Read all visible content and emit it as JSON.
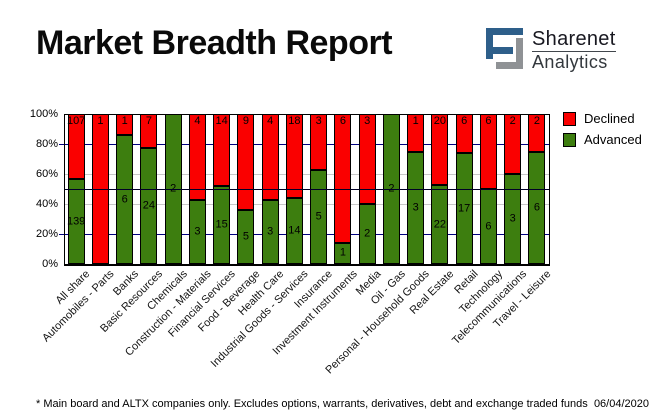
{
  "header": {
    "title": "Market Breadth Report"
  },
  "logo": {
    "name": "Sharenet",
    "sub": "Analytics",
    "blue": "#2e5f8a",
    "gray": "#8f9295"
  },
  "footer": {
    "note": "* Main board and ALTX companies only. Excludes options, warrants, derivatives, debt and exchange traded funds",
    "date": "06/04/2020"
  },
  "chart_data": {
    "type": "bar",
    "stacked": true,
    "normalized": "each bar scaled to 100%; labels show raw counts",
    "title": "Market Breadth Report",
    "xlabel": "",
    "ylabel": "",
    "ylim": [
      0,
      100
    ],
    "y_ticks": [
      {
        "pct": 100,
        "label": "100%"
      },
      {
        "pct": 80,
        "label": "80%"
      },
      {
        "pct": 60,
        "label": "60%"
      },
      {
        "pct": 40,
        "label": "40%"
      },
      {
        "pct": 20,
        "label": "20%"
      },
      {
        "pct": 0,
        "label": "0%"
      }
    ],
    "gridlines": [
      {
        "pct": 80,
        "color": "#000080"
      },
      {
        "pct": 60,
        "color": "#c8c8c8"
      },
      {
        "pct": 40,
        "color": "#c8c8c8"
      },
      {
        "pct": 20,
        "color": "#000080"
      }
    ],
    "reference_line": {
      "pct": 50,
      "color": "#000026"
    },
    "legend_position": "top-right",
    "categories": [
      "All share",
      "Automobiles - Parts",
      "Banks",
      "Basic Resources",
      "Chemicals",
      "Construction - Materials",
      "Financial Services",
      "Food - Beverage",
      "Health Care",
      "Industrial Goods - Services",
      "Insurance",
      "Investment Instruments",
      "Media",
      "Oil - Gas",
      "Personal - Household Goods",
      "Real Estate",
      "Retail",
      "Technology",
      "Telecommunications",
      "Travel - Leisure"
    ],
    "series": [
      {
        "name": "Declined",
        "color": "#fa0000",
        "values": [
          107,
          1,
          1,
          7,
          0,
          4,
          14,
          9,
          4,
          18,
          3,
          6,
          3,
          0,
          1,
          20,
          6,
          6,
          2,
          2
        ]
      },
      {
        "name": "Advanced",
        "color": "#3d7e0f",
        "values": [
          139,
          0,
          6,
          24,
          2,
          3,
          15,
          5,
          3,
          14,
          5,
          1,
          2,
          2,
          3,
          22,
          17,
          6,
          3,
          6
        ]
      }
    ]
  }
}
